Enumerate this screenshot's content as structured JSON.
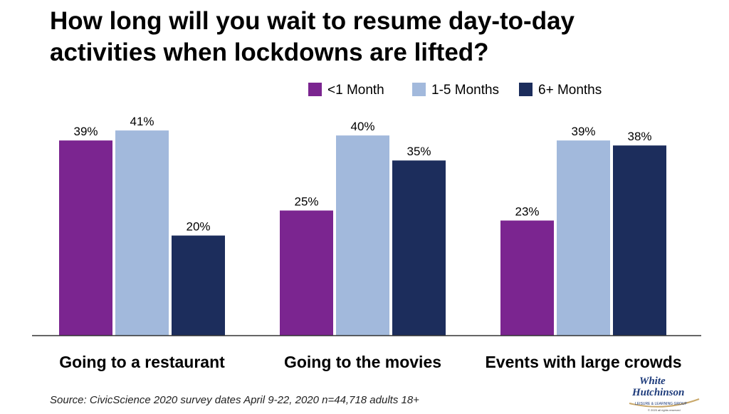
{
  "page": {
    "title_line1": "How long will you wait to resume day-to-day",
    "title_line2": "activities when lockdowns are lifted?",
    "source": "Source: CivicScience 2020 survey dates April 9-22, 2020 n=44,718 adults 18+",
    "logo": {
      "line1": "White",
      "line2": "Hutchinson",
      "tagline": "LEISURE & LEARNING GROUP",
      "copyright": "© 2020 all rights reserved"
    }
  },
  "chart_data": {
    "type": "bar",
    "title": "How long will you wait to resume day-to-day activities when lockdowns are lifted?",
    "categories": [
      "Going to a restaurant",
      "Going to the movies",
      "Events with large crowds"
    ],
    "series": [
      {
        "name": "<1 Month",
        "values": [
          39,
          25,
          23
        ],
        "labels": [
          "39%",
          "25%",
          "23%"
        ],
        "color": "#7b2590"
      },
      {
        "name": "1-5 Months",
        "values": [
          41,
          40,
          39
        ],
        "labels": [
          "41%",
          "40%",
          "39%"
        ],
        "color": "#a2b9dc"
      },
      {
        "name": "6+ Months",
        "values": [
          20,
          35,
          38
        ],
        "labels": [
          "20%",
          "35%",
          "38%"
        ],
        "color": "#1c2d5c"
      }
    ],
    "ylim": [
      0,
      52
    ],
    "grid": false,
    "legend_position": "top-right",
    "xlabel": "",
    "ylabel": ""
  }
}
